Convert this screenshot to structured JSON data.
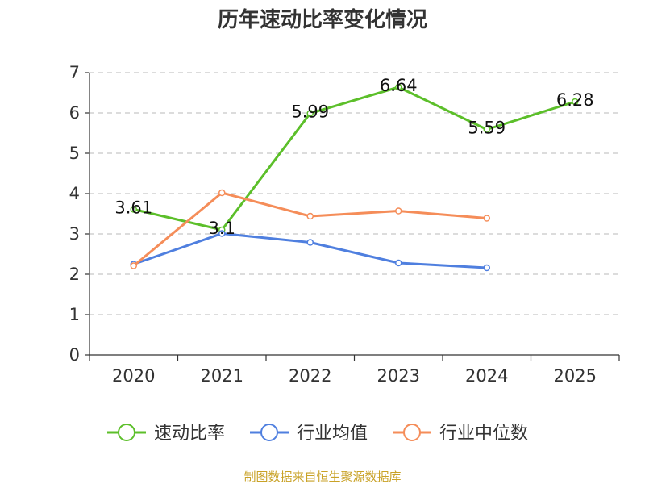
{
  "chart_data": {
    "type": "line",
    "title": "历年速动比率变化情况",
    "categories": [
      "2020",
      "2021",
      "2022",
      "2023",
      "2024",
      "2025"
    ],
    "ylim": [
      0,
      7
    ],
    "yticks": [
      0,
      1,
      2,
      3,
      4,
      5,
      6,
      7
    ],
    "grid": true,
    "legend_position": "bottom",
    "series": [
      {
        "name": "速动比率",
        "color": "#5cbf2a",
        "values": [
          3.61,
          3.1,
          5.99,
          6.64,
          5.59,
          6.28
        ],
        "show_labels": true,
        "labels": [
          "3.61",
          "3.1",
          "5.99",
          "6.64",
          "5.59",
          "6.28"
        ]
      },
      {
        "name": "行业均值",
        "color": "#4f7fdf",
        "values": [
          2.25,
          3.01,
          2.79,
          2.28,
          2.16,
          null
        ],
        "show_labels": false
      },
      {
        "name": "行业中位数",
        "color": "#f58d59",
        "values": [
          2.21,
          4.02,
          3.44,
          3.57,
          3.39,
          null
        ],
        "show_labels": false
      }
    ],
    "source": "制图数据来自恒生聚源数据库"
  }
}
